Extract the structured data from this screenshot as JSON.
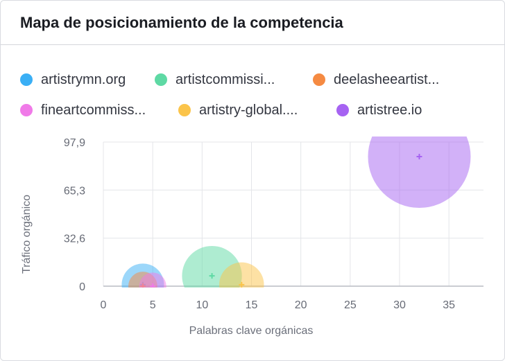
{
  "title": "Mapa de posicionamiento de la competencia",
  "chart_data": {
    "type": "scatter",
    "xlabel": "Palabras clave orgánicas",
    "ylabel": "Tráfico orgánico",
    "xlim": [
      0,
      38.5
    ],
    "ylim": [
      0,
      97.9
    ],
    "x_ticks": [
      0,
      5,
      10,
      15,
      20,
      25,
      30,
      35
    ],
    "x_tick_labels": [
      "0",
      "5",
      "10",
      "15",
      "20",
      "25",
      "30",
      "35"
    ],
    "y_ticks": [
      0,
      32.6,
      65.3,
      97.9
    ],
    "y_tick_labels": [
      "0",
      "32,6",
      "65,3",
      "97,9"
    ],
    "grid": true,
    "legend_position": "top",
    "series": [
      {
        "name": "artistrymn.org",
        "color": "#3aaff5",
        "x": 4,
        "y": 1,
        "size": 0.17
      },
      {
        "name": "artistcommissi...",
        "color": "#5ed9a4",
        "x": 11,
        "y": 7,
        "size": 0.34
      },
      {
        "name": "deelasheeartist...",
        "color": "#f58a42",
        "x": 4,
        "y": 0,
        "size": 0.08
      },
      {
        "name": "fineartcommiss...",
        "color": "#f07ae8",
        "x": 5,
        "y": 0,
        "size": 0.07
      },
      {
        "name": "artistry-global....",
        "color": "#fbc44a",
        "x": 14,
        "y": 1,
        "size": 0.19
      },
      {
        "name": "artistree.io",
        "color": "#a663f2",
        "x": 32,
        "y": 88,
        "size": 1.0
      }
    ]
  }
}
